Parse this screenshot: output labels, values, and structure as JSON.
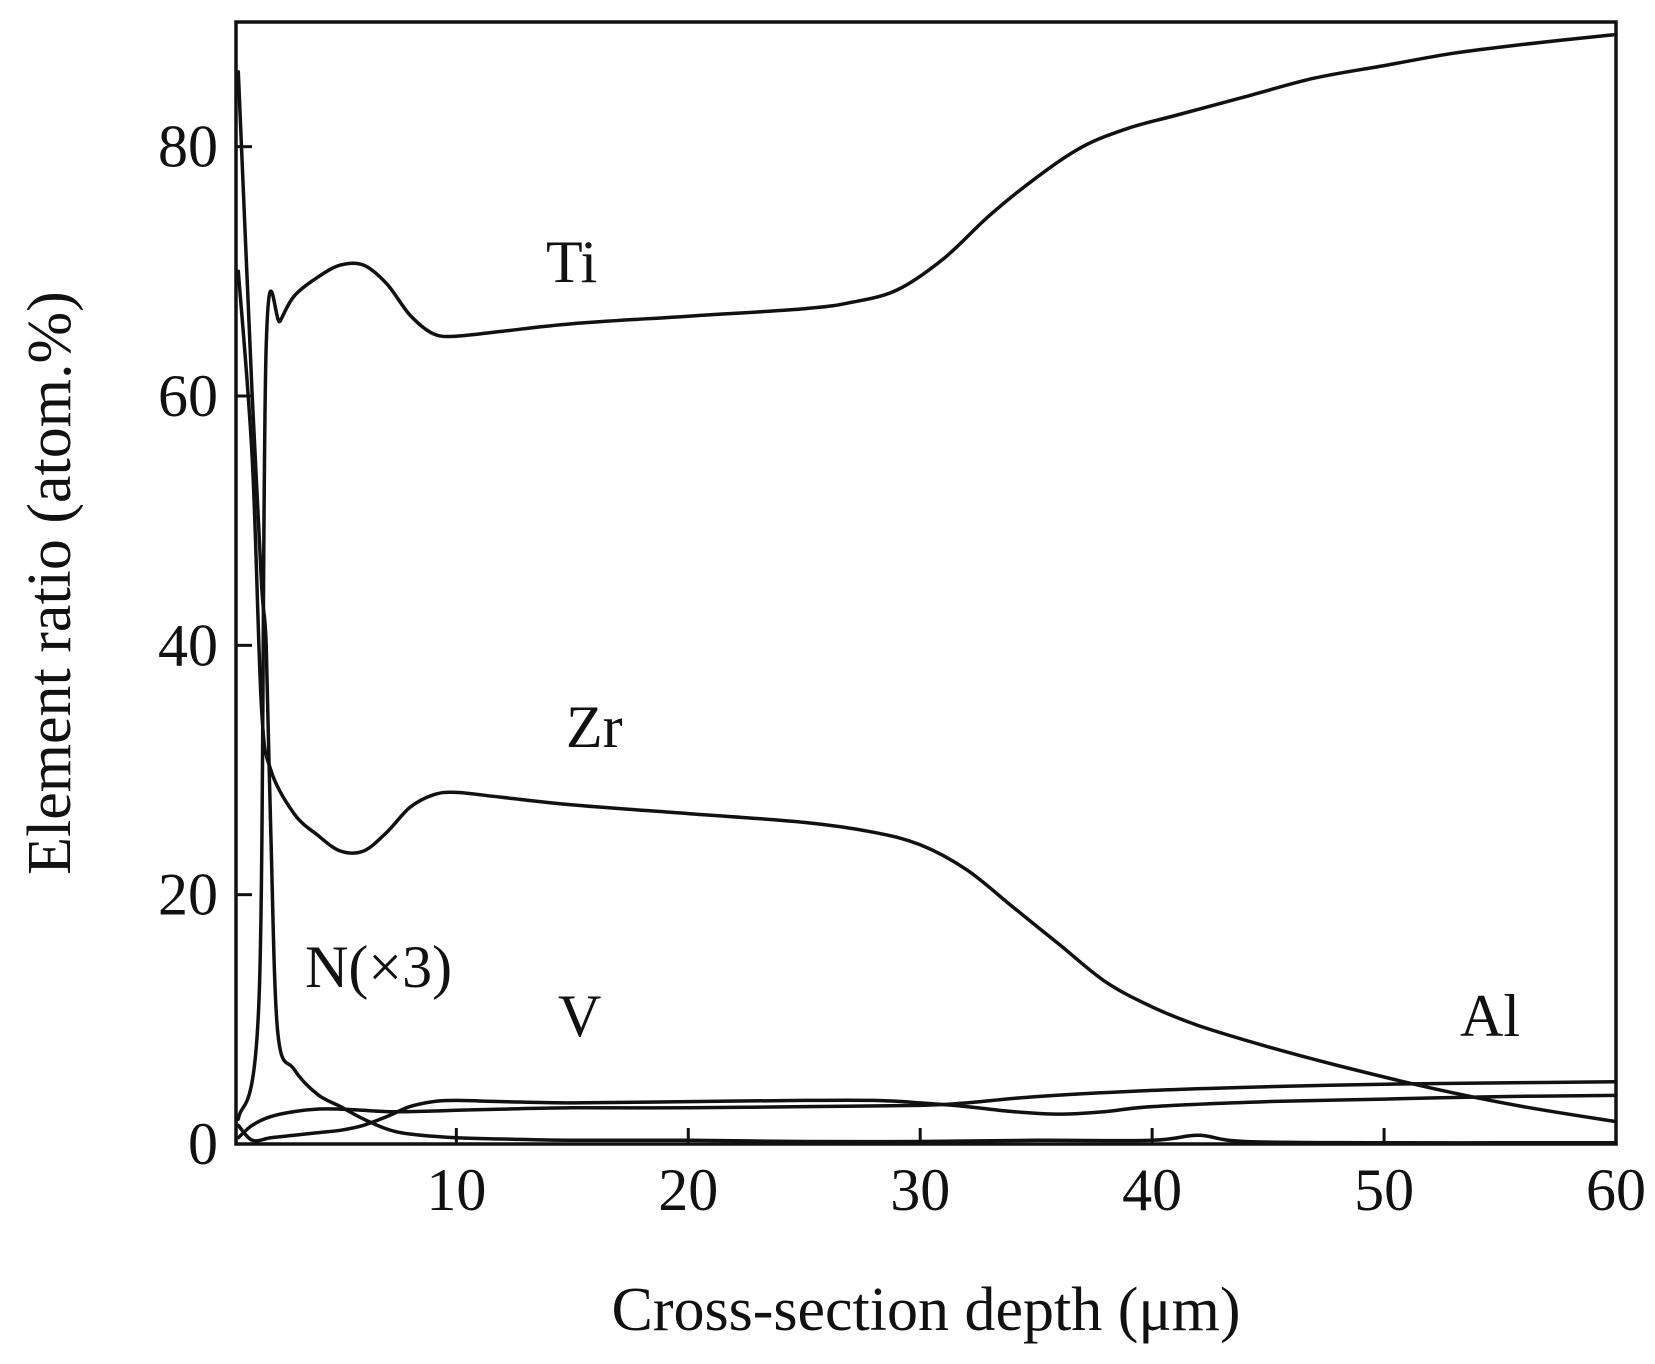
{
  "chart_data": {
    "type": "line",
    "xlabel": "Cross-section depth (μm)",
    "ylabel": "Element ratio (atom.%)",
    "xlim": [
      0.5,
      60
    ],
    "ylim": [
      0,
      90
    ],
    "xticks": [
      10,
      20,
      30,
      40,
      50,
      60
    ],
    "yticks": [
      0,
      20,
      40,
      60,
      80
    ],
    "grid": false,
    "legend": "none (series labeled inline)",
    "series": [
      {
        "name": "Ti",
        "x": [
          0.6,
          1.5,
          1.8,
          2.4,
          3,
          4,
          5,
          6,
          7,
          8,
          9,
          10,
          12,
          15,
          20,
          25,
          27,
          29,
          31,
          33,
          35,
          37,
          39,
          41,
          44,
          47,
          50,
          53,
          56,
          60
        ],
        "y": [
          2,
          12,
          64,
          66,
          68,
          69.5,
          70.5,
          70.5,
          69,
          66.5,
          65,
          64.8,
          65.2,
          65.8,
          66.4,
          67,
          67.5,
          68.5,
          71,
          74.5,
          77.5,
          80,
          81.5,
          82.5,
          84,
          85.5,
          86.5,
          87.5,
          88.2,
          89
        ]
      },
      {
        "name": "Zr",
        "x": [
          0.6,
          1.2,
          1.6,
          2,
          3,
          4,
          5,
          6,
          7,
          8,
          9,
          10,
          12,
          15,
          20,
          25,
          28,
          30,
          32,
          34,
          36,
          38,
          40,
          42,
          45,
          48,
          52,
          56,
          60
        ],
        "y": [
          70,
          55,
          35,
          30,
          26.5,
          24.8,
          23.5,
          23.5,
          25,
          27,
          28,
          28.2,
          27.8,
          27.2,
          26.5,
          25.8,
          25,
          24,
          22,
          19,
          16,
          13,
          11,
          9.5,
          7.8,
          6.3,
          4.5,
          3,
          1.8
        ]
      },
      {
        "name": "N(×3)",
        "x": [
          0.6,
          1.2,
          1.6,
          1.8,
          2,
          2.3,
          3,
          4,
          5,
          6,
          7,
          8,
          10,
          12,
          15,
          20,
          25,
          30,
          35,
          40,
          42,
          44,
          50,
          55,
          60
        ],
        "y": [
          86,
          60,
          45,
          40,
          25,
          9,
          6,
          4,
          3,
          2,
          1.2,
          0.8,
          0.5,
          0.4,
          0.3,
          0.3,
          0.2,
          0.2,
          0.3,
          0.3,
          0.7,
          0.2,
          0.1,
          0.1,
          0.1
        ]
      },
      {
        "name": "V",
        "x": [
          0.6,
          1.2,
          2,
          3,
          4,
          5,
          6,
          7,
          8,
          9,
          10,
          12,
          15,
          20,
          25,
          28,
          30,
          32,
          34,
          36,
          38,
          40,
          45,
          50,
          55,
          60
        ],
        "y": [
          1.5,
          0.3,
          0.5,
          0.7,
          0.9,
          1.1,
          1.5,
          2.2,
          3,
          3.4,
          3.5,
          3.4,
          3.3,
          3.4,
          3.5,
          3.5,
          3.3,
          3,
          2.6,
          2.4,
          2.6,
          3,
          3.4,
          3.6,
          3.8,
          3.9
        ]
      },
      {
        "name": "Al",
        "x": [
          0.6,
          1.2,
          2,
          3,
          4,
          5,
          6,
          7,
          8,
          10,
          12,
          15,
          20,
          25,
          30,
          32,
          35,
          40,
          45,
          50,
          55,
          60
        ],
        "y": [
          0.5,
          1.5,
          2.2,
          2.6,
          2.8,
          2.8,
          2.7,
          2.6,
          2.6,
          2.7,
          2.8,
          2.9,
          2.9,
          3,
          3.1,
          3.3,
          3.8,
          4.3,
          4.6,
          4.8,
          4.9,
          5
        ]
      }
    ]
  },
  "labels": {
    "ti": "Ti",
    "zr": "Zr",
    "n": "N(×3)",
    "v": "V",
    "al": "Al"
  }
}
